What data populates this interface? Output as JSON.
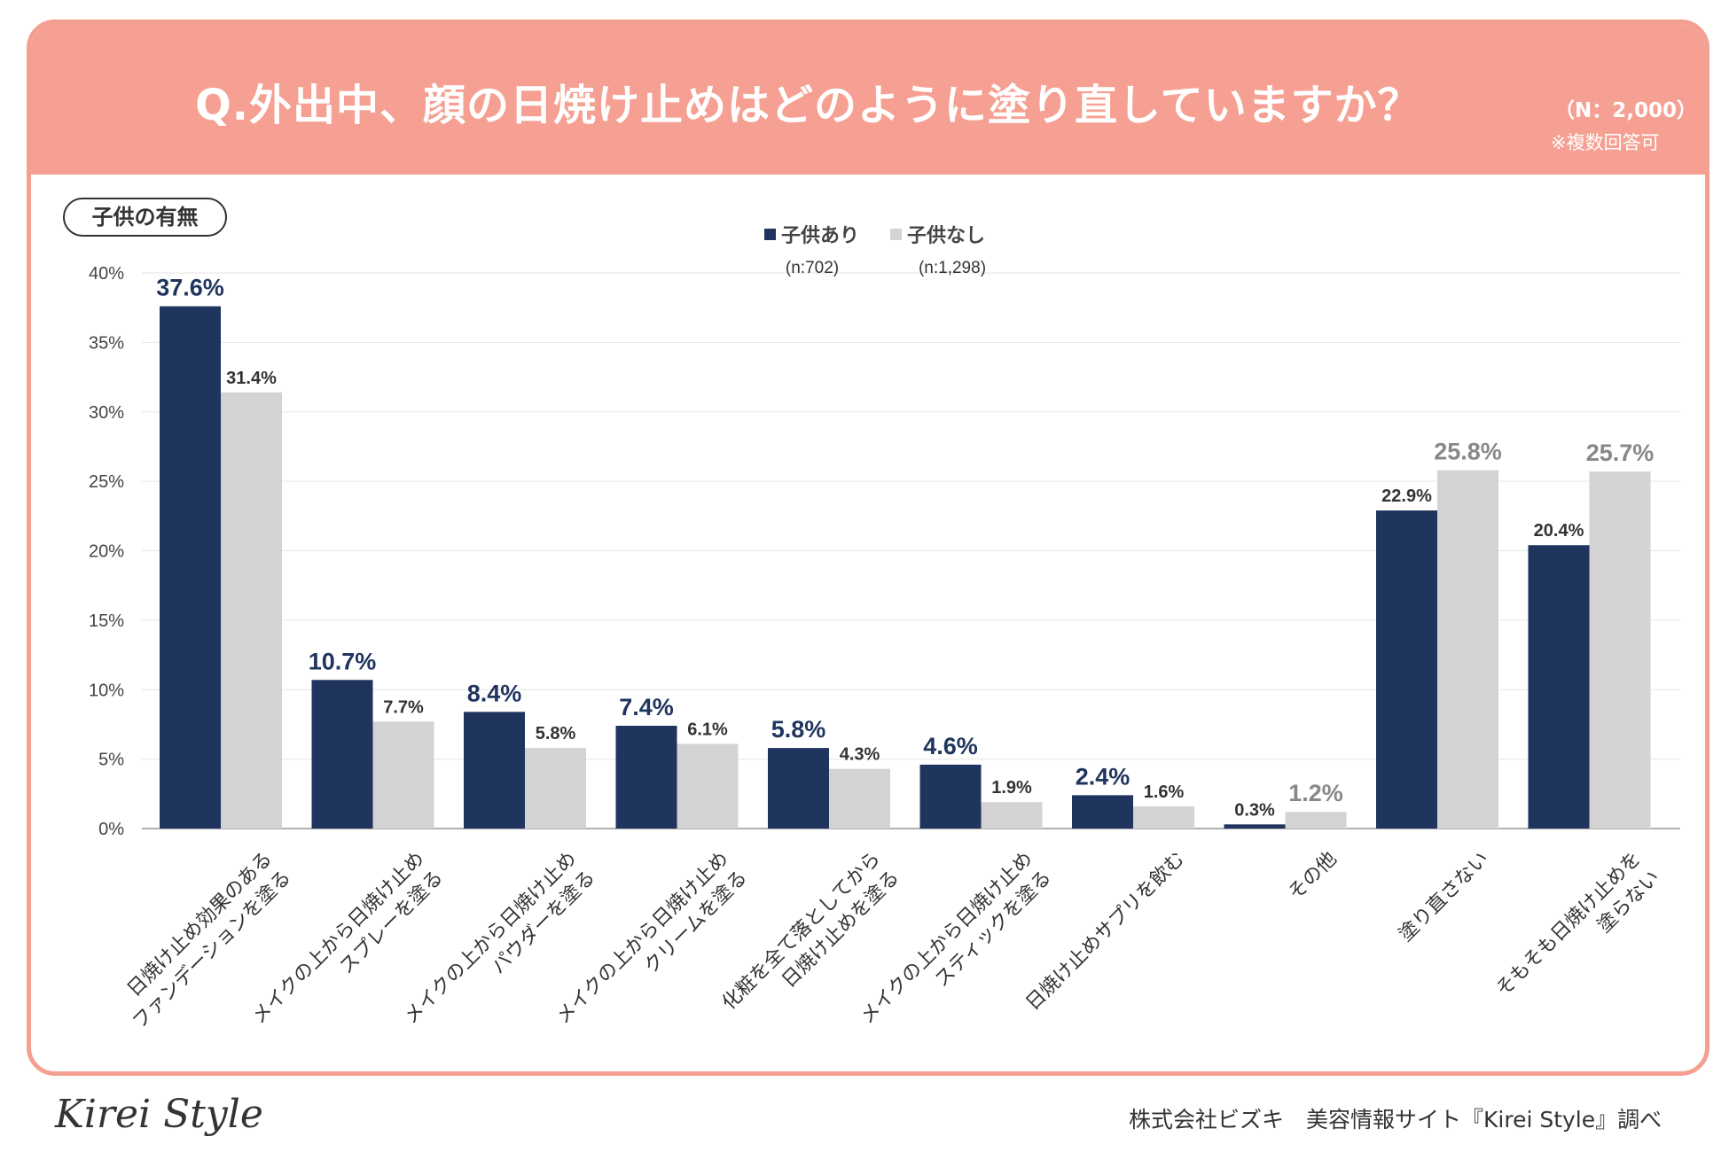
{
  "header": {
    "title": "Q.外出中、顔の日焼け止めはどのように塗り直していますか？",
    "n_label": "（N：2,000）",
    "note": "※複数回答可"
  },
  "filter_pill": "子供の有無",
  "footer": {
    "brand": "Kirei Style",
    "credit": "株式会社ビズキ　美容情報サイト『Kirei Style』調べ"
  },
  "colors": {
    "header": "#f5a092",
    "series_with_children": "#1f355e",
    "series_without_children": "#d3d3d3"
  },
  "chart_data": {
    "type": "bar",
    "title": "Q.外出中、顔の日焼け止めはどのように塗り直していますか？",
    "ylim": [
      0,
      40
    ],
    "ytick_labels": [
      "0%",
      "5%",
      "10%",
      "15%",
      "20%",
      "25%",
      "30%",
      "35%",
      "40%"
    ],
    "grid": true,
    "legend_position": "top-center",
    "categories": [
      "日焼け止め効果のある\nファンデーションを塗る",
      "メイクの上から日焼け止め\nスプレーを塗る",
      "メイクの上から日焼け止め\nパウダーを塗る",
      "メイクの上から日焼け止め\nクリームを塗る",
      "化粧を全て落としてから\n日焼け止めを塗る",
      "メイクの上から日焼け止め\nスティックを塗る",
      "日焼け止めサプリを飲む",
      "その他",
      "塗り直さない",
      "そもそも日焼け止めを\n塗らない"
    ],
    "series": [
      {
        "name": "子供あり",
        "sample": "(n:702)",
        "values": [
          37.6,
          10.7,
          8.4,
          7.4,
          5.8,
          4.6,
          2.4,
          0.3,
          22.9,
          20.4
        ],
        "labels": [
          "37.6%",
          "10.7%",
          "8.4%",
          "7.4%",
          "5.8%",
          "4.6%",
          "2.4%",
          "0.3%",
          "22.9%",
          "20.4%"
        ]
      },
      {
        "name": "子供なし",
        "sample": "(n:1,298)",
        "values": [
          31.4,
          7.7,
          5.8,
          6.1,
          4.3,
          1.9,
          1.6,
          1.2,
          25.8,
          25.7
        ],
        "labels": [
          "31.4%",
          "7.7%",
          "5.8%",
          "6.1%",
          "4.3%",
          "1.9%",
          "1.6%",
          "1.2%",
          "25.8%",
          "25.7%"
        ]
      }
    ]
  }
}
